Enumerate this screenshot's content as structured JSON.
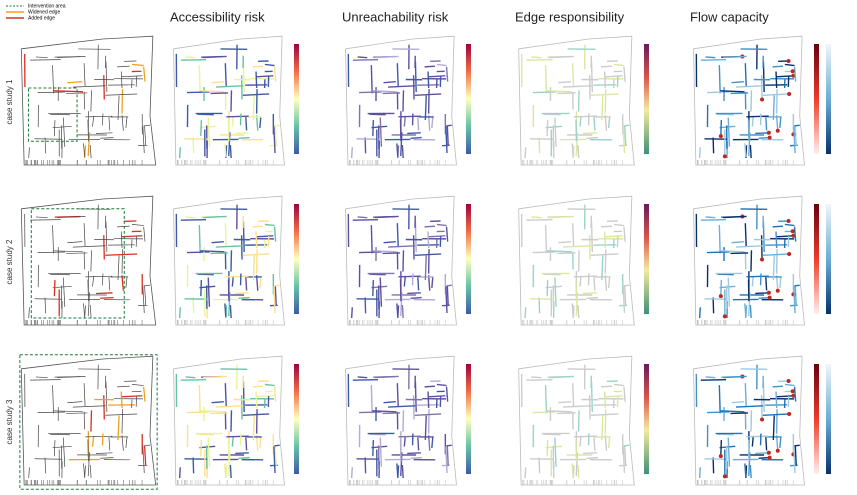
{
  "legend": [
    {
      "label": "Intervention area"
    },
    {
      "label": "Widened edge"
    },
    {
      "label": "Added edge"
    }
  ],
  "columns": [
    "Accessibility risk",
    "Unreachability risk",
    "Edge responsibility",
    "Flow capacity"
  ],
  "rows": [
    "case study 1",
    "case study 2",
    "case study 3"
  ]
}
